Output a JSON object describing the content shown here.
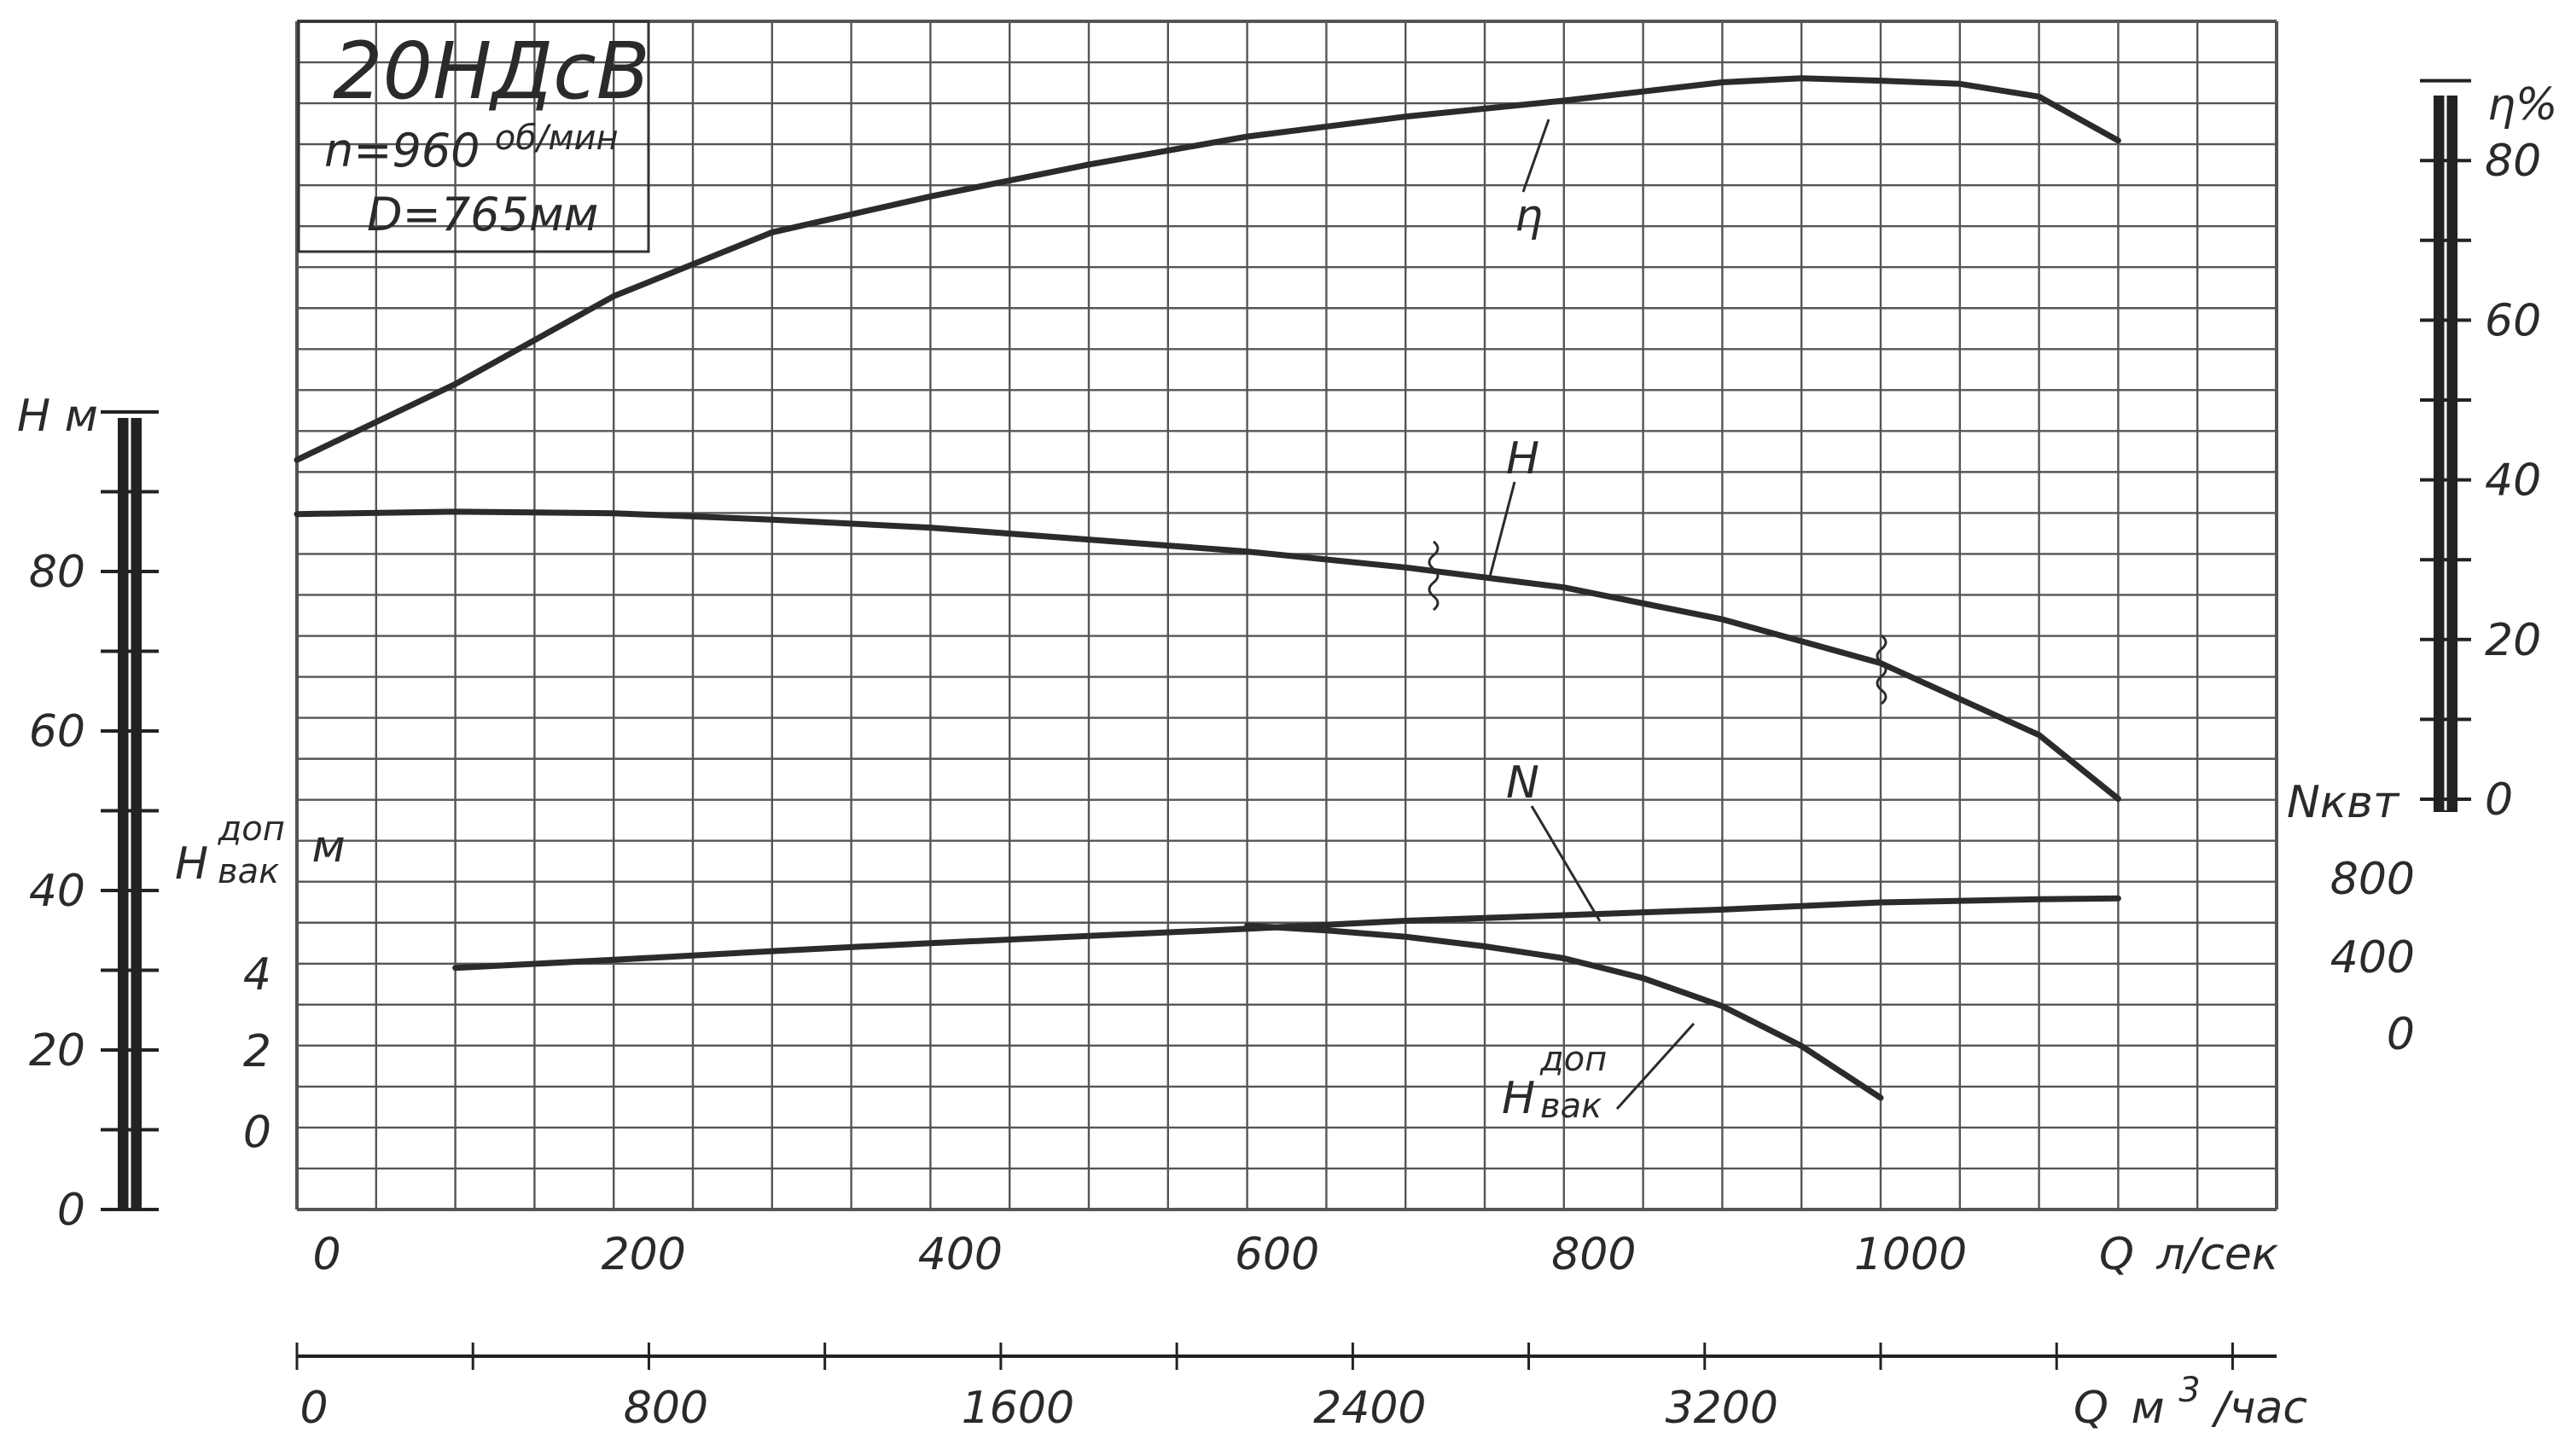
{
  "chart_data": {
    "type": "line",
    "title": "20НДсВ",
    "subtitle_speed": "n=960",
    "subtitle_speed_unit": "об/мин",
    "subtitle_diameter": "D=765мм",
    "x_axis_flow_lps": {
      "label_q": "Q",
      "label_unit": "л/сек",
      "range": [
        0,
        1250
      ],
      "ticks": [
        "0",
        "200",
        "400",
        "600",
        "800",
        "1000"
      ]
    },
    "x_axis_flow_m3h": {
      "label_q": "Q",
      "label_unit": "м",
      "label_unit_sup": "3",
      "label_unit_tail": "/час",
      "range": [
        0,
        4500
      ],
      "ticks": [
        "0",
        "800",
        "1600",
        "2400",
        "3200"
      ]
    },
    "y_axis_head": {
      "label": "Н м",
      "range": [
        0,
        100
      ],
      "ticks": [
        "0",
        "20",
        "40",
        "60",
        "80"
      ]
    },
    "y_axis_efficiency": {
      "label": "η%",
      "range": [
        0,
        90
      ],
      "ticks": [
        "0",
        "20",
        "40",
        "60",
        "80"
      ]
    },
    "y_axis_power": {
      "label": "Nквт",
      "ticks": [
        "0",
        "400",
        "800"
      ]
    },
    "y_axis_vacuum": {
      "label_main": "Н",
      "label_sup": "доп",
      "label_sub": "вак",
      "label_unit": "м",
      "ticks": [
        "0",
        "2",
        "4"
      ]
    },
    "grid": true,
    "series": [
      {
        "name": "η",
        "color": "#2b2b2b",
        "x": [
          0,
          100,
          200,
          300,
          400,
          500,
          600,
          700,
          800,
          900,
          950,
          1000,
          1050,
          1100,
          1150
        ],
        "y": [
          50.5,
          60,
          71,
          79,
          83.5,
          87.5,
          91,
          93.5,
          95.5,
          97.8,
          98.3,
          98,
          97.6,
          96,
          90.5
        ]
      },
      {
        "name": "H",
        "color": "#2b2b2b",
        "x": [
          0,
          100,
          200,
          300,
          400,
          500,
          600,
          700,
          800,
          900,
          1000,
          1100,
          1150
        ],
        "y": [
          87.2,
          87.5,
          87.3,
          86.5,
          85.5,
          84,
          82.5,
          80.5,
          78,
          74,
          68.5,
          59.5,
          51.5
        ]
      },
      {
        "name": "N",
        "color": "#2b2b2b",
        "x": [
          100,
          200,
          300,
          400,
          500,
          600,
          700,
          800,
          900,
          1000,
          1100,
          1150
        ],
        "y": [
          30.3,
          31.3,
          32.4,
          33.4,
          34.3,
          35.2,
          36.2,
          36.9,
          37.6,
          38.5,
          38.9,
          39
        ]
      },
      {
        "name": "Н доп вак",
        "color": "#2b2b2b",
        "x": [
          600,
          650,
          700,
          750,
          800,
          850,
          900,
          950,
          1000
        ],
        "y": [
          35.6,
          35,
          34.2,
          33,
          31.5,
          29,
          25.5,
          20.5,
          14
        ]
      }
    ]
  }
}
